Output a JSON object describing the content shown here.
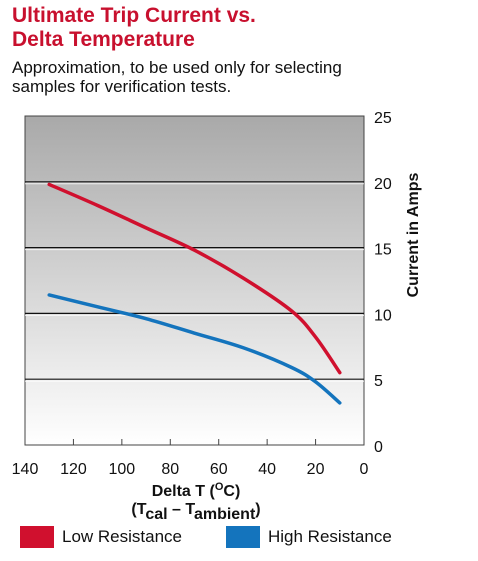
{
  "title_lines": [
    "Ultimate Trip Current vs.",
    "Delta Temperature"
  ],
  "subtitle_lines": [
    "Approximation, to be used only for selecting",
    "samples for verification tests."
  ],
  "colors": {
    "title": "#c8102e",
    "low_resistance": "#d0102e",
    "high_resistance": "#1474bd",
    "gridline": "#111111",
    "plot_top": "#a9a9a9",
    "plot_bottom": "#ffffff"
  },
  "chart_data": {
    "type": "line",
    "xlabel": "Delta T (°C)",
    "xlabel_main": "Delta T (",
    "xlabel_unit_sup": "O",
    "xlabel_unit_tail": "C)",
    "xlabel_line2_open": "(T",
    "xlabel_line2_sub1": "cal",
    "xlabel_line2_mid": " – T",
    "xlabel_line2_sub2": "ambient",
    "xlabel_line2_close": ")",
    "ylabel": "Current in Amps",
    "xlim": [
      140,
      0
    ],
    "ylim": [
      0,
      25
    ],
    "x_ticks": [
      "140",
      "120",
      "100",
      "80",
      "60",
      "40",
      "20",
      "0"
    ],
    "y_ticks": [
      "0",
      "5",
      "10",
      "15",
      "20",
      "25"
    ],
    "grid": "horizontal",
    "legend_position": "bottom",
    "series": [
      {
        "name": "Low Resistance",
        "x": [
          130,
          110,
          90,
          70,
          50,
          30,
          20,
          10
        ],
        "y": [
          19.8,
          18.2,
          16.5,
          14.8,
          12.7,
          10.2,
          8.2,
          5.5
        ]
      },
      {
        "name": "High Resistance",
        "x": [
          130,
          110,
          90,
          70,
          50,
          30,
          20,
          10
        ],
        "y": [
          11.4,
          10.5,
          9.6,
          8.5,
          7.4,
          5.9,
          4.8,
          3.2
        ]
      }
    ]
  }
}
